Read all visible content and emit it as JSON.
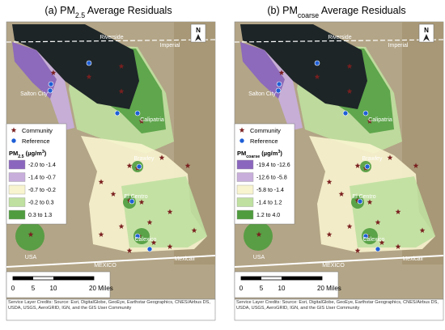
{
  "panels": [
    {
      "title": {
        "prefix": "(a) PM",
        "subscript": "2.5",
        "suffix": " Average Residuals"
      },
      "legend": {
        "community": "Community",
        "reference": "Reference",
        "unit": {
          "prefix": "PM",
          "subscript": "2.5",
          "middle": " (µg/m",
          "superscript": "3",
          "suffix": ")"
        },
        "classes": [
          {
            "label": "-2.0 to -1.4",
            "color": "#8b66be"
          },
          {
            "label": "-1.4 to -0.7",
            "color": "#c7aedb"
          },
          {
            "label": "-0.7 to -0.2",
            "color": "#f8f4cf"
          },
          {
            "label": "-0.2 to 0.3",
            "color": "#bfe0a0"
          },
          {
            "label": "0.3 to 1.3",
            "color": "#4f9c3e"
          }
        ]
      }
    },
    {
      "title": {
        "prefix": "(b) PM",
        "subscript": "coarse",
        "suffix": " Average Residuals"
      },
      "legend": {
        "community": "Community",
        "reference": "Reference",
        "unit": {
          "prefix": "PM",
          "subscript": "coarse",
          "middle": " (µg/m",
          "superscript": "3",
          "suffix": ")"
        },
        "classes": [
          {
            "label": "-19.4 to -12.6",
            "color": "#8b66be"
          },
          {
            "label": "-12.6 to -5.8",
            "color": "#c7aedb"
          },
          {
            "label": "-5.8 to -1.4",
            "color": "#f8f4cf"
          },
          {
            "label": "-1.4 to 1.2",
            "color": "#bfe0a0"
          },
          {
            "label": "1.2 to 4.0",
            "color": "#4f9c3e"
          }
        ]
      }
    }
  ],
  "map_labels": {
    "riverside": "Riverside",
    "imperial": "Imperial",
    "salton_city": "Salton City",
    "calipatria": "Calipatria",
    "brawley": "Brawley",
    "el_centro": "El Centro",
    "calexico": "Calexico",
    "usa": "USA",
    "mexico": "MEXICO",
    "mexicali": "Mexicali",
    "north": "N"
  },
  "scale_bar": {
    "ticks": [
      "0",
      "5",
      "10",
      "20 Miles"
    ]
  },
  "credits": "Service Layer Credits: Source: Esri, DigitalGlobe, GeoEye, Earthstar Geographics, CNES/Airbus DS, USDA, USGS, AeroGRID, IGN, and the GIS User Community"
}
